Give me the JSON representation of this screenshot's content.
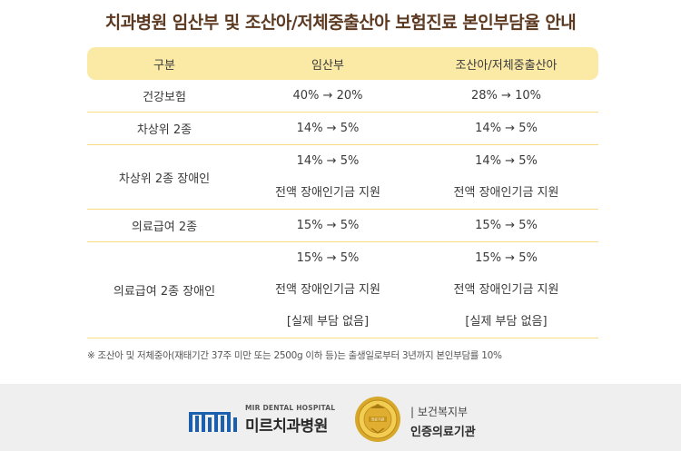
{
  "title": "치과병원 임산부 및 조산아/저체중출산아 보험진료 본인부담율 안내",
  "table": {
    "headers": [
      "구분",
      "임산부",
      "조산아/저체중출산아"
    ],
    "rows": [
      {
        "category": "건강보험",
        "pregnant": [
          "40% → 20%"
        ],
        "premature": [
          "28% → 10%"
        ]
      },
      {
        "category": "차상위 2종",
        "pregnant": [
          "14% → 5%"
        ],
        "premature": [
          "14% → 5%"
        ]
      },
      {
        "category": "차상위 2종 장애인",
        "pregnant": [
          "14% → 5%",
          "전액 장애인기금 지원"
        ],
        "premature": [
          "14% → 5%",
          "전액 장애인기금 지원"
        ]
      },
      {
        "category": "의료급여 2종",
        "pregnant": [
          "15% → 5%"
        ],
        "premature": [
          "15% → 5%"
        ]
      },
      {
        "category": "의료급여 2종 장애인",
        "pregnant": [
          "15% → 5%",
          "전액 장애인기금 지원",
          "[실제 부담 없음]"
        ],
        "premature": [
          "15% → 5%",
          "전액 장애인기금 지원",
          "[실제 부담 없음]"
        ]
      }
    ]
  },
  "note": "※ 조산아 및 저체중아(재태기간 37주 미만 또는 2500g 이하 등)는 출생일로부터 3년까지 본인부담률 10%",
  "footer": {
    "hospital_sub": "MIR DENTAL HOSPITAL",
    "hospital_name": "미르치과병원",
    "cert_top": "| 보건복지부",
    "cert_bottom": "인증의료기관",
    "seal_label": "의료기관"
  },
  "colors": {
    "header_bg": "#fbeaa6",
    "divider": "#f5dc82",
    "title": "#5c3a22",
    "logo_blue": "#1b5fae"
  }
}
